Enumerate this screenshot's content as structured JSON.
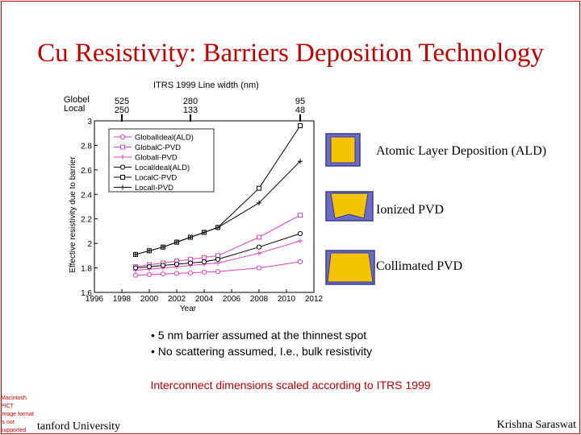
{
  "slide": {
    "title": "Cu Resistivity: Barriers Deposition Technology",
    "bullets": [
      "• 5 nm barrier assumed at the thinnest spot",
      "• No scattering assumed, I.e., bulk resistivity"
    ],
    "note": "Interconnect dimensions scaled according to ITRS 1999",
    "footer_left": "tanford University",
    "footer_right": "Krishna Saraswat",
    "placeholder_lines": [
      "Macintosh PICT",
      "image format",
      "is not supported"
    ],
    "diagram_labels": [
      "Atomic Layer Deposition (ALD)",
      "Ionized PVD",
      "Collimated PVD"
    ],
    "colors": {
      "title": "#c00000",
      "note": "#c00000",
      "metal_fill": "#f5c400",
      "metal_outline": "#3a3a8c",
      "barrier": "#6b6bc9",
      "global_series": "#e040c0",
      "local_series": "#000000"
    }
  },
  "chart_data": {
    "type": "line",
    "top_axis_title": "ITRS 1999 Line width (nm)",
    "top_row_labels": [
      "Globel",
      "Local"
    ],
    "top_ticks": [
      {
        "x": 1998,
        "globel": "525",
        "local": "250"
      },
      {
        "x": 2003,
        "globel": "280",
        "local": "133"
      },
      {
        "x": 2011,
        "globel": "95",
        "local": "48"
      }
    ],
    "xlabel": "Year",
    "ylabel": "Effective resistivity due to barrier",
    "xlim": [
      1996,
      2012
    ],
    "ylim": [
      1.6,
      3
    ],
    "xticks": [
      1996,
      1998,
      2000,
      2002,
      2004,
      2006,
      2008,
      2010,
      2012
    ],
    "yticks": [
      1.6,
      1.8,
      2,
      2.2,
      2.4,
      2.6,
      2.8,
      3
    ],
    "yticklabels": [
      "1.6",
      "1.8",
      "2",
      "2.2",
      "2.4",
      "2.6",
      "2.8",
      "3"
    ],
    "legend_position": "top-left",
    "x": [
      1999,
      2000,
      2001,
      2002,
      2003,
      2004,
      2005,
      2008,
      2011
    ],
    "series": [
      {
        "name": "GlobalIdeal(ALD)",
        "color": "#e040c0",
        "marker": "circle",
        "values": [
          1.74,
          1.745,
          1.75,
          1.755,
          1.76,
          1.765,
          1.77,
          1.8,
          1.85
        ]
      },
      {
        "name": "GlobalC-PVD",
        "color": "#e040c0",
        "marker": "square",
        "values": [
          1.81,
          1.825,
          1.84,
          1.855,
          1.87,
          1.885,
          1.9,
          2.05,
          2.23
        ]
      },
      {
        "name": "GlobalI-PVD",
        "color": "#e040c0",
        "marker": "plus",
        "values": [
          1.78,
          1.79,
          1.8,
          1.81,
          1.82,
          1.83,
          1.84,
          1.92,
          2.02
        ]
      },
      {
        "name": "LocalIdeal(ALD)",
        "color": "#000000",
        "marker": "circle",
        "values": [
          1.8,
          1.81,
          1.82,
          1.83,
          1.84,
          1.85,
          1.87,
          1.97,
          2.08
        ]
      },
      {
        "name": "LocalC-PVD",
        "color": "#000000",
        "marker": "square",
        "values": [
          1.91,
          1.94,
          1.97,
          2.01,
          2.05,
          2.09,
          2.13,
          2.45,
          2.96
        ]
      },
      {
        "name": "LocalI-PVD",
        "color": "#000000",
        "marker": "plus",
        "values": [
          1.91,
          1.94,
          1.97,
          2.01,
          2.05,
          2.09,
          2.13,
          2.33,
          2.67
        ]
      }
    ]
  }
}
